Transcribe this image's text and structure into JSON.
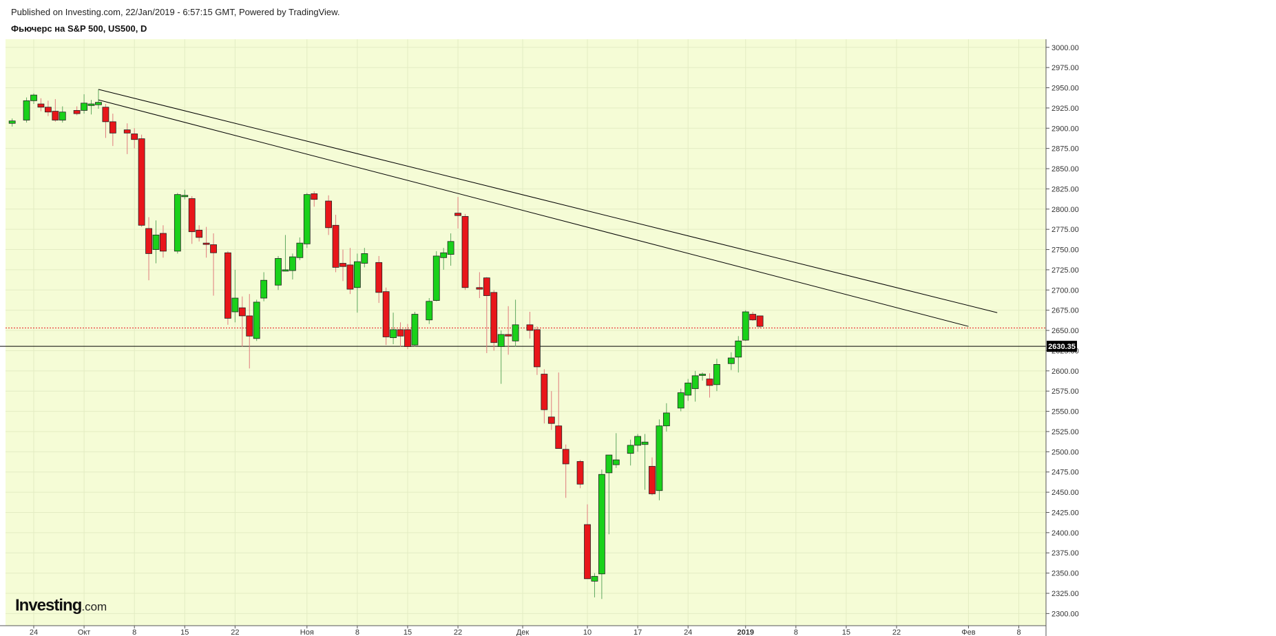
{
  "header": {
    "published": "Published on Investing.com, 22/Jan/2019 - 6:57:15 GMT, Powered by TradingView.",
    "symbol": "Фьючерс на S&P 500, US500, D"
  },
  "logo": {
    "brand": "Investing",
    "suffix": ".com"
  },
  "colors": {
    "background": "#f5fcd6",
    "up": "#1ad11a",
    "down": "#e8161a",
    "current_price_line": "#000000",
    "dotted_line": "#e8161a",
    "trendline": "#000000"
  },
  "chart_data": {
    "type": "candlestick",
    "ylim": [
      2285,
      3010
    ],
    "y_ticks": [
      3000,
      2975,
      2950,
      2925,
      2900,
      2875,
      2850,
      2825,
      2800,
      2775,
      2750,
      2725,
      2700,
      2675,
      2650,
      2625,
      2600,
      2575,
      2550,
      2525,
      2500,
      2475,
      2450,
      2425,
      2400,
      2375,
      2350,
      2325,
      2300
    ],
    "x_ticks": [
      {
        "label": "24",
        "date": "2018-09-24"
      },
      {
        "label": "Окт",
        "date": "2018-10-01"
      },
      {
        "label": "8",
        "date": "2018-10-08"
      },
      {
        "label": "15",
        "date": "2018-10-15"
      },
      {
        "label": "22",
        "date": "2018-10-22"
      },
      {
        "label": "Ноя",
        "date": "2018-11-01"
      },
      {
        "label": "8",
        "date": "2018-11-08"
      },
      {
        "label": "15",
        "date": "2018-11-15"
      },
      {
        "label": "22",
        "date": "2018-11-22"
      },
      {
        "label": "Дек",
        "date": "2018-12-01"
      },
      {
        "label": "10",
        "date": "2018-12-10"
      },
      {
        "label": "17",
        "date": "2018-12-17"
      },
      {
        "label": "24",
        "date": "2018-12-24"
      },
      {
        "label": "2019",
        "date": "2019-01-01"
      },
      {
        "label": "8",
        "date": "2019-01-08"
      },
      {
        "label": "15",
        "date": "2019-01-15"
      },
      {
        "label": "22",
        "date": "2019-01-22"
      },
      {
        "label": "Фев",
        "date": "2019-02-01"
      },
      {
        "label": "8",
        "date": "2019-02-08"
      }
    ],
    "current_price": {
      "value": 2630.35,
      "label": "2630.35"
    },
    "dotted_level": 2653,
    "trendlines": [
      {
        "start": {
          "date": "2018-10-03",
          "value": 2948
        },
        "end": {
          "date": "2019-02-05",
          "value": 2672
        }
      },
      {
        "start": {
          "date": "2018-10-03",
          "value": 2935
        },
        "end": {
          "date": "2019-02-01",
          "value": 2655
        }
      }
    ],
    "candles": [
      {
        "date": "2018-09-21",
        "o": 2906,
        "h": 2912,
        "l": 2902,
        "c": 2909
      },
      {
        "date": "2018-09-23",
        "o": 2910,
        "h": 2938,
        "l": 2907,
        "c": 2934
      },
      {
        "date": "2018-09-24",
        "o": 2934,
        "h": 2943,
        "l": 2930,
        "c": 2941
      },
      {
        "date": "2018-09-25",
        "o": 2930,
        "h": 2937,
        "l": 2921,
        "c": 2926
      },
      {
        "date": "2018-09-26",
        "o": 2926,
        "h": 2934,
        "l": 2915,
        "c": 2920
      },
      {
        "date": "2018-09-27",
        "o": 2921,
        "h": 2936,
        "l": 2908,
        "c": 2910
      },
      {
        "date": "2018-09-28",
        "o": 2910,
        "h": 2927,
        "l": 2907,
        "c": 2920
      },
      {
        "date": "2018-09-30",
        "o": 2922,
        "h": 2927,
        "l": 2916,
        "c": 2918
      },
      {
        "date": "2018-10-01",
        "o": 2922,
        "h": 2942,
        "l": 2918,
        "c": 2931
      },
      {
        "date": "2018-10-02",
        "o": 2928,
        "h": 2935,
        "l": 2917,
        "c": 2930
      },
      {
        "date": "2018-10-03",
        "o": 2929,
        "h": 2948,
        "l": 2924,
        "c": 2932
      },
      {
        "date": "2018-10-04",
        "o": 2926,
        "h": 2930,
        "l": 2888,
        "c": 2908
      },
      {
        "date": "2018-10-05",
        "o": 2908,
        "h": 2918,
        "l": 2878,
        "c": 2894
      },
      {
        "date": "2018-10-07",
        "o": 2898,
        "h": 2906,
        "l": 2868,
        "c": 2894
      },
      {
        "date": "2018-10-08",
        "o": 2893,
        "h": 2900,
        "l": 2875,
        "c": 2886
      },
      {
        "date": "2018-10-09",
        "o": 2887,
        "h": 2892,
        "l": 2778,
        "c": 2780
      },
      {
        "date": "2018-10-10",
        "o": 2776,
        "h": 2790,
        "l": 2712,
        "c": 2745
      },
      {
        "date": "2018-10-11",
        "o": 2750,
        "h": 2786,
        "l": 2733,
        "c": 2768
      },
      {
        "date": "2018-10-12",
        "o": 2770,
        "h": 2780,
        "l": 2740,
        "c": 2748
      },
      {
        "date": "2018-10-14",
        "o": 2748,
        "h": 2820,
        "l": 2745,
        "c": 2818
      },
      {
        "date": "2018-10-15",
        "o": 2816,
        "h": 2824,
        "l": 2812,
        "c": 2817
      },
      {
        "date": "2018-10-16",
        "o": 2813,
        "h": 2816,
        "l": 2757,
        "c": 2772
      },
      {
        "date": "2018-10-17",
        "o": 2774,
        "h": 2780,
        "l": 2760,
        "c": 2765
      },
      {
        "date": "2018-10-18",
        "o": 2758,
        "h": 2778,
        "l": 2740,
        "c": 2757
      },
      {
        "date": "2018-10-19",
        "o": 2756,
        "h": 2770,
        "l": 2693,
        "c": 2746
      },
      {
        "date": "2018-10-21",
        "o": 2746,
        "h": 2748,
        "l": 2657,
        "c": 2665
      },
      {
        "date": "2018-10-22",
        "o": 2673,
        "h": 2725,
        "l": 2660,
        "c": 2690
      },
      {
        "date": "2018-10-23",
        "o": 2678,
        "h": 2692,
        "l": 2630,
        "c": 2668
      },
      {
        "date": "2018-10-24",
        "o": 2668,
        "h": 2695,
        "l": 2603,
        "c": 2643
      },
      {
        "date": "2018-10-25",
        "o": 2640,
        "h": 2688,
        "l": 2637,
        "c": 2685
      },
      {
        "date": "2018-10-26",
        "o": 2690,
        "h": 2722,
        "l": 2686,
        "c": 2712
      },
      {
        "date": "2018-10-28",
        "o": 2706,
        "h": 2742,
        "l": 2700,
        "c": 2739
      },
      {
        "date": "2018-10-29",
        "o": 2725,
        "h": 2768,
        "l": 2723,
        "c": 2725
      },
      {
        "date": "2018-10-30",
        "o": 2724,
        "h": 2745,
        "l": 2713,
        "c": 2741
      },
      {
        "date": "2018-10-31",
        "o": 2740,
        "h": 2765,
        "l": 2737,
        "c": 2758
      },
      {
        "date": "2018-11-01",
        "o": 2757,
        "h": 2820,
        "l": 2752,
        "c": 2818
      },
      {
        "date": "2018-11-02",
        "o": 2819,
        "h": 2822,
        "l": 2803,
        "c": 2812
      },
      {
        "date": "2018-11-04",
        "o": 2810,
        "h": 2817,
        "l": 2768,
        "c": 2777
      },
      {
        "date": "2018-11-05",
        "o": 2780,
        "h": 2793,
        "l": 2722,
        "c": 2728
      },
      {
        "date": "2018-11-06",
        "o": 2733,
        "h": 2750,
        "l": 2711,
        "c": 2729
      },
      {
        "date": "2018-11-07",
        "o": 2731,
        "h": 2752,
        "l": 2695,
        "c": 2701
      },
      {
        "date": "2018-11-08",
        "o": 2703,
        "h": 2745,
        "l": 2672,
        "c": 2735
      },
      {
        "date": "2018-11-09",
        "o": 2733,
        "h": 2752,
        "l": 2728,
        "c": 2745
      },
      {
        "date": "2018-11-11",
        "o": 2734,
        "h": 2742,
        "l": 2684,
        "c": 2697
      },
      {
        "date": "2018-11-12",
        "o": 2698,
        "h": 2703,
        "l": 2632,
        "c": 2642
      },
      {
        "date": "2018-11-13",
        "o": 2641,
        "h": 2672,
        "l": 2633,
        "c": 2651
      },
      {
        "date": "2018-11-14",
        "o": 2651,
        "h": 2660,
        "l": 2630,
        "c": 2643
      },
      {
        "date": "2018-11-15",
        "o": 2651,
        "h": 2658,
        "l": 2627,
        "c": 2630
      },
      {
        "date": "2018-11-16",
        "o": 2632,
        "h": 2673,
        "l": 2630,
        "c": 2670
      },
      {
        "date": "2018-11-18",
        "o": 2663,
        "h": 2690,
        "l": 2658,
        "c": 2686
      },
      {
        "date": "2018-11-19",
        "o": 2687,
        "h": 2748,
        "l": 2686,
        "c": 2742
      },
      {
        "date": "2018-11-20",
        "o": 2740,
        "h": 2752,
        "l": 2725,
        "c": 2746
      },
      {
        "date": "2018-11-21",
        "o": 2744,
        "h": 2770,
        "l": 2730,
        "c": 2760
      },
      {
        "date": "2018-11-22",
        "o": 2795,
        "h": 2815,
        "l": 2776,
        "c": 2792
      },
      {
        "date": "2018-11-23",
        "o": 2791,
        "h": 2794,
        "l": 2700,
        "c": 2703
      },
      {
        "date": "2018-11-25",
        "o": 2703,
        "h": 2722,
        "l": 2690,
        "c": 2701
      },
      {
        "date": "2018-11-26",
        "o": 2715,
        "h": 2716,
        "l": 2622,
        "c": 2693
      },
      {
        "date": "2018-11-27",
        "o": 2697,
        "h": 2700,
        "l": 2625,
        "c": 2635
      },
      {
        "date": "2018-11-28",
        "o": 2630,
        "h": 2650,
        "l": 2584,
        "c": 2645
      },
      {
        "date": "2018-11-29",
        "o": 2645,
        "h": 2680,
        "l": 2620,
        "c": 2643
      },
      {
        "date": "2018-11-30",
        "o": 2637,
        "h": 2688,
        "l": 2630,
        "c": 2657
      },
      {
        "date": "2018-12-02",
        "o": 2657,
        "h": 2673,
        "l": 2640,
        "c": 2650
      },
      {
        "date": "2018-12-03",
        "o": 2651,
        "h": 2655,
        "l": 2595,
        "c": 2605
      },
      {
        "date": "2018-12-04",
        "o": 2596,
        "h": 2602,
        "l": 2535,
        "c": 2552
      },
      {
        "date": "2018-12-05",
        "o": 2543,
        "h": 2575,
        "l": 2527,
        "c": 2535
      },
      {
        "date": "2018-12-06",
        "o": 2532,
        "h": 2598,
        "l": 2510,
        "c": 2504
      },
      {
        "date": "2018-12-07",
        "o": 2503,
        "h": 2509,
        "l": 2443,
        "c": 2485
      },
      {
        "date": "2018-12-09",
        "o": 2488,
        "h": 2490,
        "l": 2455,
        "c": 2460
      },
      {
        "date": "2018-12-10",
        "o": 2410,
        "h": 2435,
        "l": 2343,
        "c": 2343
      },
      {
        "date": "2018-12-11",
        "o": 2340,
        "h": 2350,
        "l": 2320,
        "c": 2346
      },
      {
        "date": "2018-12-12",
        "o": 2349,
        "h": 2478,
        "l": 2318,
        "c": 2472
      },
      {
        "date": "2018-12-13",
        "o": 2474,
        "h": 2495,
        "l": 2398,
        "c": 2496
      },
      {
        "date": "2018-12-14",
        "o": 2484,
        "h": 2523,
        "l": 2480,
        "c": 2490
      },
      {
        "date": "2018-12-16",
        "o": 2498,
        "h": 2515,
        "l": 2483,
        "c": 2508
      },
      {
        "date": "2018-12-17",
        "o": 2508,
        "h": 2522,
        "l": 2500,
        "c": 2519
      },
      {
        "date": "2018-12-18",
        "o": 2509,
        "h": 2522,
        "l": 2453,
        "c": 2512
      },
      {
        "date": "2018-12-19",
        "o": 2482,
        "h": 2493,
        "l": 2446,
        "c": 2448
      },
      {
        "date": "2018-12-20",
        "o": 2452,
        "h": 2540,
        "l": 2440,
        "c": 2532
      },
      {
        "date": "2018-12-21",
        "o": 2532,
        "h": 2560,
        "l": 2525,
        "c": 2548
      },
      {
        "date": "2018-12-23",
        "o": 2554,
        "h": 2578,
        "l": 2550,
        "c": 2573
      },
      {
        "date": "2018-12-24",
        "o": 2570,
        "h": 2590,
        "l": 2563,
        "c": 2585
      },
      {
        "date": "2018-12-25",
        "o": 2578,
        "h": 2600,
        "l": 2562,
        "c": 2594
      },
      {
        "date": "2018-12-26",
        "o": 2595,
        "h": 2598,
        "l": 2588,
        "c": 2596
      },
      {
        "date": "2018-12-27",
        "o": 2590,
        "h": 2597,
        "l": 2567,
        "c": 2582
      },
      {
        "date": "2018-12-28",
        "o": 2583,
        "h": 2615,
        "l": 2575,
        "c": 2608
      },
      {
        "date": "2018-12-30",
        "o": 2609,
        "h": 2623,
        "l": 2601,
        "c": 2616
      },
      {
        "date": "2018-12-31",
        "o": 2617,
        "h": 2643,
        "l": 2598,
        "c": 2637
      },
      {
        "date": "2019-01-01",
        "o": 2638,
        "h": 2675,
        "l": 2637,
        "c": 2673
      },
      {
        "date": "2019-01-02",
        "o": 2670,
        "h": 2673,
        "l": 2662,
        "c": 2663
      },
      {
        "date": "2019-01-03",
        "o": 2668,
        "h": 2668,
        "l": 2653,
        "c": 2655
      }
    ]
  }
}
